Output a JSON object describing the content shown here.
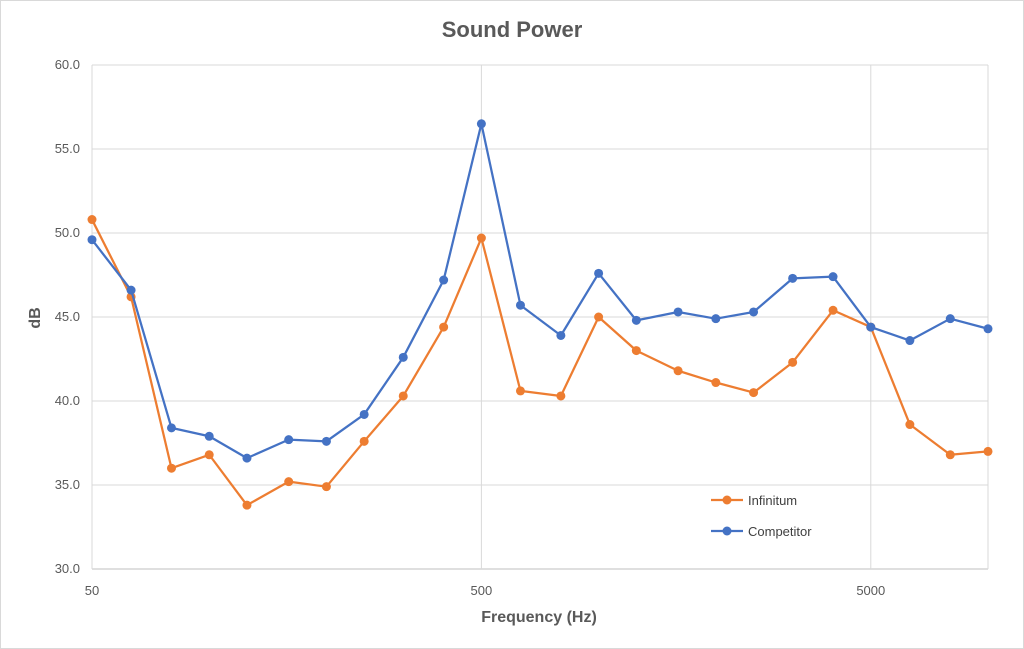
{
  "chart_data": {
    "type": "line",
    "title": "Sound Power",
    "xlabel": "Frequency (Hz)",
    "ylabel": "dB",
    "x_scale": "log",
    "x_tick_labels": [
      "50",
      "500",
      "5000"
    ],
    "y_tick_labels": [
      "30.0",
      "35.0",
      "40.0",
      "45.0",
      "50.0",
      "55.0",
      "60.0"
    ],
    "ylim": [
      30,
      60
    ],
    "grid": "horizontal",
    "legend_position": "bottom-right",
    "x": [
      50,
      63,
      80,
      100,
      125,
      160,
      200,
      250,
      315,
      400,
      500,
      630,
      800,
      1000,
      1250,
      1600,
      2000,
      2500,
      3150,
      4000,
      5000,
      6300,
      8000,
      10000
    ],
    "series": [
      {
        "name": "Infinitum",
        "color": "#ed7d31",
        "values": [
          50.8,
          46.2,
          36.0,
          36.8,
          33.8,
          35.2,
          34.9,
          37.6,
          40.3,
          44.4,
          49.7,
          40.6,
          40.3,
          45.0,
          43.0,
          41.8,
          41.1,
          40.5,
          42.3,
          45.4,
          44.4,
          38.6,
          36.8,
          37.0
        ]
      },
      {
        "name": "Competitor",
        "color": "#4472c4",
        "values": [
          49.6,
          46.6,
          38.4,
          37.9,
          36.6,
          37.7,
          37.6,
          39.2,
          42.6,
          47.2,
          56.5,
          45.7,
          43.9,
          47.6,
          44.8,
          45.3,
          44.9,
          45.3,
          47.3,
          47.4,
          44.4,
          43.6,
          44.9,
          44.3
        ]
      }
    ]
  }
}
